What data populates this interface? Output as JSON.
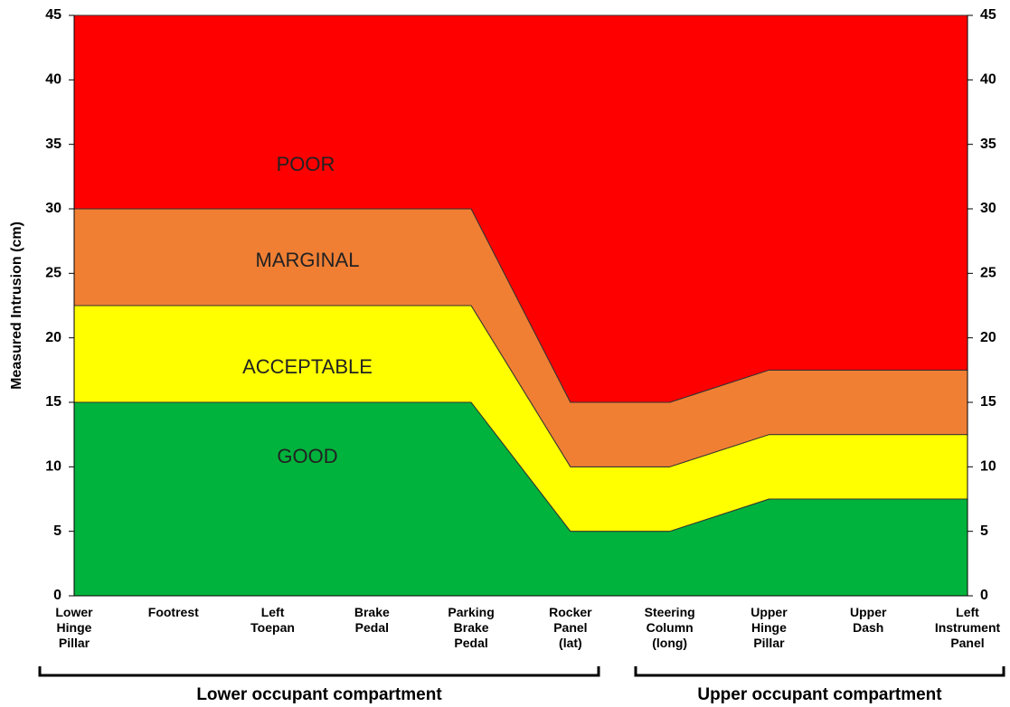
{
  "chart_data": {
    "type": "stacked-area",
    "y_label": "Measured Intrusion (cm)",
    "categories": [
      "Lower Hinge Pillar",
      "Footrest",
      "Left Toepan",
      "Brake Pedal",
      "Parking Brake Pedal",
      "Rocker Panel (lat)",
      "Steering Column (long)",
      "Upper Hinge Pillar",
      "Upper Dash",
      "Left Instrument Panel"
    ],
    "series": [
      {
        "name": "GOOD",
        "color": "#00b33c",
        "values": [
          15,
          15,
          15,
          15,
          15,
          5,
          5,
          7.5,
          7.5,
          7.5
        ]
      },
      {
        "name": "ACCEPTABLE",
        "color": "#ffff00",
        "values": [
          7.5,
          7.5,
          7.5,
          7.5,
          7.5,
          5,
          5,
          5,
          5,
          5
        ]
      },
      {
        "name": "MARGINAL",
        "color": "#f07f34",
        "values": [
          7.5,
          7.5,
          7.5,
          7.5,
          7.5,
          5,
          5,
          5,
          5,
          5
        ]
      },
      {
        "name": "POOR",
        "color": "#ff0000",
        "values": [
          15,
          15,
          15,
          15,
          15,
          30,
          30,
          27.5,
          27.5,
          27.5
        ]
      }
    ],
    "ylim": [
      0,
      45
    ],
    "yticks": [
      0,
      5,
      10,
      15,
      20,
      25,
      30,
      35,
      40,
      45
    ],
    "groups": [
      "Lower occupant compartment",
      "Upper occupant compartment"
    ]
  }
}
